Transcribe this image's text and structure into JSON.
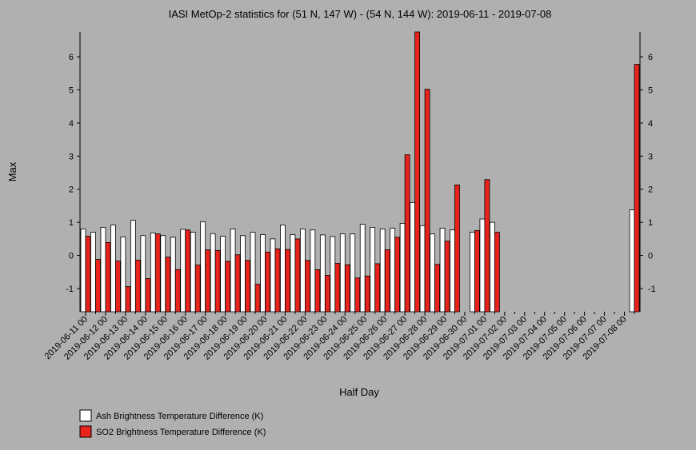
{
  "chart_data": {
    "type": "bar",
    "title": "IASI MetOp-2 statistics for (51 N, 147 W) - (54 N, 144 W): 2019-06-11 - 2019-07-08",
    "x_label": "Half Day",
    "y_label": "Max",
    "categories": [
      "2019-06-11 00",
      null,
      "2019-06-12 00",
      null,
      "2019-06-13 00",
      null,
      "2019-06-14 00",
      null,
      "2019-06-15 00",
      null,
      "2019-06-16 00",
      null,
      "2019-06-17 00",
      null,
      "2019-06-18 00",
      null,
      "2019-06-19 00",
      null,
      "2019-06-20 00",
      null,
      "2019-06-21 00",
      null,
      "2019-06-22 00",
      null,
      "2019-06-23 00",
      null,
      "2019-06-24 00",
      null,
      "2019-06-25 00",
      null,
      "2019-06-26 00",
      null,
      "2019-06-27 00",
      null,
      "2019-06-28 00",
      null,
      "2019-06-29 00",
      null,
      "2019-06-30 00",
      null,
      "2019-07-01 00",
      null,
      "2019-07-02 00",
      null,
      "2019-07-03 00",
      null,
      "2019-07-04 00",
      null,
      "2019-07-05 00",
      null,
      "2019-07-06 00",
      null,
      "2019-07-07 00",
      null,
      "2019-07-08 00",
      null
    ],
    "series": [
      {
        "name": "Ash Brightness Temperature Difference (K)",
        "color": "#ffffff",
        "values": [
          0.8,
          0.7,
          0.85,
          0.92,
          0.56,
          1.06,
          0.6,
          0.68,
          0.6,
          0.55,
          0.79,
          0.7,
          1.02,
          0.66,
          0.58,
          0.8,
          0.6,
          0.7,
          0.63,
          0.5,
          0.92,
          0.63,
          0.8,
          0.77,
          0.62,
          0.57,
          0.65,
          0.65,
          0.94,
          0.85,
          0.8,
          0.82,
          0.97,
          1.6,
          0.9,
          0.65,
          0.82,
          0.77,
          null,
          0.7,
          1.1,
          1.0,
          null,
          null,
          null,
          null,
          null,
          null,
          null,
          null,
          null,
          null,
          null,
          null,
          null,
          1.38
        ]
      },
      {
        "name": "SO2 Brightness Temperature Difference (K)",
        "color": "#e8231c",
        "values": [
          0.58,
          -0.12,
          0.39,
          -0.17,
          -0.94,
          -0.14,
          -0.7,
          0.65,
          -0.05,
          -0.43,
          0.77,
          -0.29,
          0.17,
          0.15,
          -0.18,
          0.02,
          -0.15,
          -0.87,
          0.1,
          0.2,
          0.18,
          0.5,
          -0.15,
          -0.43,
          -0.6,
          -0.24,
          -0.28,
          -0.68,
          -0.62,
          -0.25,
          0.17,
          0.55,
          3.04,
          6.75,
          5.02,
          -0.27,
          0.43,
          2.13,
          null,
          0.75,
          2.29,
          0.7,
          null,
          null,
          null,
          null,
          null,
          null,
          null,
          null,
          null,
          null,
          null,
          null,
          null,
          5.77
        ]
      }
    ],
    "ylim": [
      -1.7,
      6.75
    ],
    "yticks": [
      -1,
      0,
      1,
      2,
      3,
      4,
      5,
      6
    ],
    "grid": false
  }
}
